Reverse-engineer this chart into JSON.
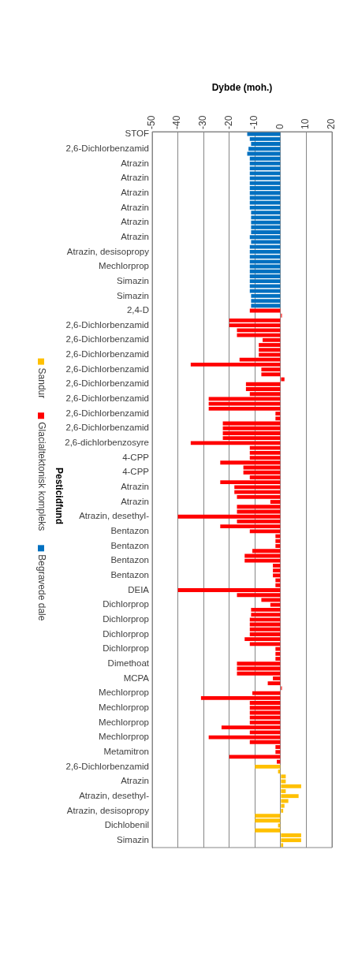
{
  "chart_data": {
    "type": "bar",
    "orientation": "horizontal",
    "stacked": true,
    "xlabel": "Dybde (moh.)",
    "ylabel": "Pesticidfund",
    "xlim": [
      -50,
      20
    ],
    "xticks": [
      -50,
      -40,
      -30,
      -20,
      -10,
      0,
      10,
      20
    ],
    "grid": "x",
    "legend": "left",
    "categories": [
      "STOF",
      null,
      null,
      "2,6-Dichlorbenzamid",
      null,
      null,
      "Atrazin",
      null,
      null,
      "Atrazin",
      null,
      null,
      "Atrazin",
      null,
      null,
      "Atrazin",
      null,
      null,
      "Atrazin",
      null,
      null,
      "Atrazin",
      null,
      null,
      "Atrazin, desisopropy",
      null,
      null,
      "Mechlorprop",
      null,
      null,
      "Simazin",
      null,
      null,
      "Simazin",
      null,
      null,
      "2,4-D",
      null,
      null,
      "2,6-Dichlorbenzamid",
      null,
      null,
      "2,6-Dichlorbenzamid",
      null,
      null,
      "2,6-Dichlorbenzamid",
      null,
      null,
      "2,6-Dichlorbenzamid",
      null,
      null,
      "2,6-Dichlorbenzamid",
      null,
      null,
      "2,6-Dichlorbenzamid",
      null,
      null,
      "2,6-Dichlorbenzamid",
      null,
      null,
      "2,6-Dichlorbenzamid",
      null,
      null,
      "2,6-dichlorbenzosyre",
      null,
      null,
      "4-CPP",
      null,
      null,
      "4-CPP",
      null,
      null,
      "Atrazin",
      null,
      null,
      "Atrazin",
      null,
      null,
      "Atrazin, desethyl-",
      null,
      null,
      "Bentazon",
      null,
      null,
      "Bentazon",
      null,
      null,
      "Bentazon",
      null,
      null,
      "Bentazon",
      null,
      null,
      "DEIA",
      null,
      null,
      "Dichlorprop",
      null,
      null,
      "Dichlorprop",
      null,
      null,
      "Dichlorprop",
      null,
      null,
      "Dichlorprop",
      null,
      null,
      "Dimethoat",
      null,
      null,
      "MCPA",
      null,
      null,
      "Mechlorprop",
      null,
      null,
      "Mechlorprop",
      null,
      null,
      "Mechlorprop",
      null,
      null,
      "Mechlorprop",
      null,
      null,
      "Metamitron",
      null,
      null,
      "2,6-Dichlorbenzamid",
      null,
      null,
      "Atrazin",
      null,
      null,
      "Atrazin, desethyl-",
      null,
      null,
      "Atrazin, desisopropy",
      null,
      null,
      "Dichlobenil",
      null,
      null,
      "Simazin",
      null
    ],
    "series": [
      {
        "name": "Begravede dale",
        "color": "#0070c0",
        "values": [
          -13,
          -12,
          -11.5,
          -12.5,
          -13,
          -12,
          -12,
          -12,
          -12,
          -12,
          -12,
          -12,
          -12,
          -12,
          -12,
          -12,
          -11.5,
          -11.5,
          -11.5,
          -11.5,
          -11.5,
          -12,
          -11.5,
          -12,
          -12,
          -12,
          -12,
          -12,
          -12,
          -12,
          -12,
          -12,
          -12,
          -11.5,
          -11.5,
          -11.5,
          null,
          null,
          null,
          null,
          null,
          null,
          null,
          null,
          null,
          null,
          null,
          null,
          null,
          null,
          null,
          null,
          null,
          null,
          null,
          null,
          null,
          null,
          null,
          null,
          null,
          null,
          null,
          null,
          null,
          null,
          null,
          null,
          null,
          null,
          null,
          null,
          null,
          null,
          null,
          null,
          null,
          null,
          null,
          null,
          null,
          null,
          null,
          null,
          null,
          null,
          null,
          null,
          null,
          null,
          null,
          null,
          null,
          null,
          null,
          null,
          null,
          null,
          null,
          null,
          null,
          null,
          null,
          null,
          null,
          null,
          null,
          null,
          null,
          null,
          null,
          null,
          null,
          null,
          null,
          null,
          null,
          null,
          null,
          null,
          null,
          null,
          null,
          null,
          null,
          null,
          null,
          null,
          null,
          null,
          null,
          null,
          null,
          null,
          null,
          null,
          null,
          null,
          null,
          null,
          null,
          null,
          null,
          null,
          null,
          null
        ]
      },
      {
        "name": "Glacialtektonisk kompleks",
        "color": "#ff0000",
        "values": [
          null,
          null,
          null,
          null,
          null,
          null,
          null,
          null,
          null,
          null,
          null,
          null,
          null,
          null,
          null,
          null,
          null,
          null,
          null,
          null,
          null,
          null,
          null,
          null,
          null,
          null,
          null,
          null,
          null,
          null,
          null,
          null,
          null,
          null,
          null,
          null,
          -12,
          0.5,
          -20,
          -20,
          -17,
          -17,
          -7,
          -8.5,
          -8.5,
          -8.5,
          -16,
          -35,
          -7.5,
          -7.5,
          1.5,
          -13.5,
          -13.5,
          -12,
          -28,
          -28,
          -28,
          -2,
          -2,
          -22.5,
          -22.5,
          -22.5,
          -22.5,
          -35,
          -12,
          -12,
          -12,
          -23.5,
          -14.5,
          -14.5,
          -12,
          -23.5,
          -18,
          -18,
          -17,
          -4,
          -17,
          -17,
          -40,
          -17,
          -23.5,
          -12,
          -2,
          -2,
          -2,
          -11,
          -14,
          -14,
          -3,
          -3,
          -3,
          -2,
          -2,
          -40,
          -17,
          -7.5,
          -4,
          -11.5,
          -11.5,
          -12,
          -12,
          -12,
          -12,
          -14,
          -12,
          -2,
          -2,
          -2,
          -17,
          -17,
          -17,
          -3,
          -5,
          0.5,
          -11,
          -31,
          -12,
          -12,
          -12,
          -12,
          -12,
          -23,
          -12,
          -28,
          -12,
          -2,
          -2,
          -20,
          -1.5,
          null,
          null,
          null,
          null,
          null,
          null,
          null,
          null,
          null,
          null,
          null,
          null,
          null,
          null,
          null,
          null,
          null
        ]
      },
      {
        "name": "Sandur",
        "color": "#ffc000",
        "values": [
          null,
          null,
          null,
          null,
          null,
          null,
          null,
          null,
          null,
          null,
          null,
          null,
          null,
          null,
          null,
          null,
          null,
          null,
          null,
          null,
          null,
          null,
          null,
          null,
          null,
          null,
          null,
          null,
          null,
          null,
          null,
          null,
          null,
          null,
          null,
          null,
          null,
          null,
          null,
          null,
          null,
          null,
          null,
          null,
          null,
          null,
          null,
          null,
          null,
          null,
          null,
          null,
          null,
          null,
          null,
          null,
          null,
          null,
          null,
          null,
          null,
          null,
          null,
          null,
          null,
          null,
          null,
          null,
          null,
          null,
          null,
          null,
          null,
          null,
          null,
          null,
          null,
          null,
          null,
          null,
          null,
          null,
          null,
          null,
          null,
          null,
          null,
          null,
          null,
          null,
          null,
          null,
          null,
          null,
          null,
          null,
          null,
          null,
          null,
          null,
          null,
          null,
          null,
          null,
          null,
          null,
          null,
          null,
          null,
          null,
          null,
          null,
          null,
          null,
          null,
          null,
          null,
          null,
          null,
          null,
          null,
          null,
          null,
          null,
          null,
          null,
          null,
          null,
          null,
          -10,
          -1,
          2,
          2,
          8,
          2,
          7,
          3,
          1.5,
          1,
          -10,
          -10,
          -1,
          -10,
          8,
          8,
          1
        ]
      }
    ]
  }
}
